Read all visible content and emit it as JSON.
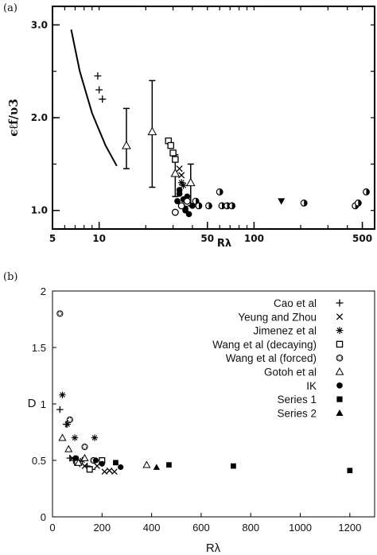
{
  "panel_a": {
    "label": "(a)",
    "ylabel": "ϵℓf/υ3",
    "xlabel": "Rλ",
    "xticks": [
      "5",
      "10",
      "50",
      "100",
      "500"
    ],
    "yticks": [
      "1.0",
      "2.0",
      "3.0"
    ]
  },
  "panel_b": {
    "label": "(b)",
    "ylabel": "D",
    "xlabel": "Rλ",
    "xticks": [
      "0",
      "200",
      "400",
      "600",
      "800",
      "1000",
      "1200"
    ],
    "yticks": [
      "0",
      "0.5",
      "1",
      "1.5",
      "2"
    ],
    "legend": [
      {
        "text": "Cao et al",
        "marker": "plus"
      },
      {
        "text": "Yeung and Zhou",
        "marker": "cross"
      },
      {
        "text": "Jimenez et al",
        "marker": "asterisk"
      },
      {
        "text": "Wang et al (decaying)",
        "marker": "open-square"
      },
      {
        "text": "Wang et al (forced)",
        "marker": "open-circle-dot"
      },
      {
        "text": "Gotoh et al",
        "marker": "open-triangle"
      },
      {
        "text": "IK",
        "marker": "filled-circle"
      },
      {
        "text": "Series 1",
        "marker": "filled-square"
      },
      {
        "text": "Series 2",
        "marker": "filled-triangle"
      }
    ]
  },
  "chart_data": [
    {
      "type": "scatter",
      "xscale": "log",
      "xlim": [
        5,
        600
      ],
      "ylim": [
        0.8,
        3.2
      ],
      "curve": {
        "x": [
          6.6,
          7.5,
          9,
          11,
          13
        ],
        "y": [
          2.95,
          2.5,
          2.05,
          1.7,
          1.48
        ]
      },
      "series": [
        {
          "marker": "plus",
          "x": [
            9.8,
            10.0,
            10.5
          ],
          "y": [
            2.45,
            2.3,
            2.2
          ]
        },
        {
          "marker": "open-triangle-errbar",
          "x": [
            15,
            22,
            31,
            39
          ],
          "y": [
            1.7,
            1.85,
            1.4,
            1.3
          ],
          "yerr": [
            [
              1.45,
              2.1
            ],
            [
              1.25,
              2.4
            ],
            [
              1.15,
              1.6
            ],
            [
              1.05,
              1.5
            ]
          ]
        },
        {
          "marker": "open-square",
          "x": [
            28,
            29,
            30,
            31
          ],
          "y": [
            1.75,
            1.7,
            1.62,
            1.55
          ]
        },
        {
          "marker": "cross",
          "x": [
            33,
            34
          ],
          "y": [
            1.45,
            1.38
          ]
        },
        {
          "marker": "asterisk",
          "x": [
            34,
            35
          ],
          "y": [
            1.3,
            1.27
          ]
        },
        {
          "marker": "filled-circle",
          "x": [
            32,
            33,
            35,
            36,
            37,
            38,
            40,
            33,
            36
          ],
          "y": [
            1.1,
            1.18,
            1.12,
            1.02,
            1.15,
            0.96,
            1.05,
            1.22,
            1.0
          ]
        },
        {
          "marker": "open-circle",
          "x": [
            31,
            34,
            37
          ],
          "y": [
            0.98,
            1.05,
            1.1
          ]
        },
        {
          "marker": "half-circle",
          "x": [
            42,
            44,
            51,
            60,
            62,
            67,
            72,
            210,
            450,
            470,
            530
          ],
          "y": [
            1.1,
            1.05,
            1.05,
            1.2,
            1.05,
            1.05,
            1.05,
            1.08,
            1.05,
            1.08,
            1.2
          ]
        },
        {
          "marker": "filled-triangle-down",
          "x": [
            150
          ],
          "y": [
            1.1
          ]
        }
      ]
    },
    {
      "type": "scatter",
      "xlim": [
        0,
        1300
      ],
      "ylim": [
        0,
        2
      ],
      "series": [
        {
          "name": "Cao et al",
          "marker": "plus",
          "x": [
            30,
            55,
            70,
            85,
            110,
            140,
            160
          ],
          "y": [
            0.95,
            0.82,
            0.52,
            0.5,
            0.47,
            0.45,
            0.42
          ]
        },
        {
          "name": "Yeung and Zhou",
          "marker": "cross",
          "x": [
            80,
            100,
            130,
            180,
            210,
            230,
            250
          ],
          "y": [
            0.52,
            0.48,
            0.45,
            0.45,
            0.4,
            0.41,
            0.4
          ]
        },
        {
          "name": "Jimenez et al",
          "marker": "asterisk",
          "x": [
            40,
            60,
            90,
            120,
            170
          ],
          "y": [
            1.08,
            0.82,
            0.7,
            0.5,
            0.7
          ]
        },
        {
          "name": "Wang et al (decaying)",
          "marker": "open-square",
          "x": [
            100,
            150,
            200
          ],
          "y": [
            0.48,
            0.42,
            0.5
          ]
        },
        {
          "name": "Wang et al (forced)",
          "marker": "open-circle-dot",
          "x": [
            30,
            70,
            130,
            165
          ],
          "y": [
            1.8,
            0.86,
            0.62,
            0.5
          ]
        },
        {
          "name": "Gotoh et al",
          "marker": "open-triangle",
          "x": [
            40,
            65,
            105,
            130,
            380
          ],
          "y": [
            0.7,
            0.6,
            0.48,
            0.52,
            0.46
          ]
        },
        {
          "name": "IK",
          "marker": "filled-circle",
          "x": [
            95,
            175,
            200,
            275
          ],
          "y": [
            0.52,
            0.5,
            0.47,
            0.44
          ]
        },
        {
          "name": "Series 1",
          "marker": "filled-square",
          "x": [
            255,
            470,
            730,
            1200
          ],
          "y": [
            0.48,
            0.46,
            0.45,
            0.41
          ]
        },
        {
          "name": "Series 2",
          "marker": "filled-triangle",
          "x": [
            420
          ],
          "y": [
            0.44
          ]
        }
      ]
    }
  ]
}
